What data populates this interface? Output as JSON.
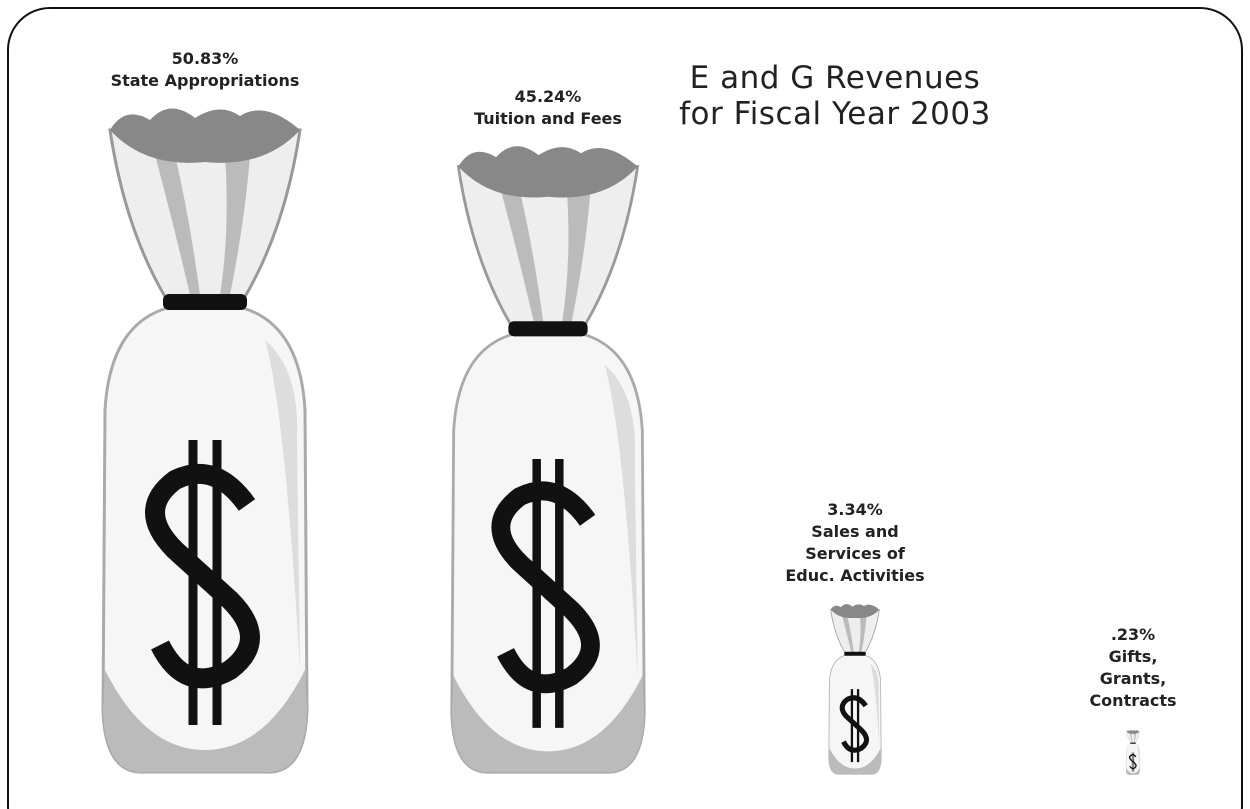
{
  "chart_data": {
    "type": "pictograph",
    "title": "E and G Revenues\nfor Fiscal Year 2003",
    "categories": [
      "State Appropriations",
      "Tuition and Fees",
      "Sales and\nServices of\nEduc. Activities",
      "Gifts,\nGrants,\nContracts"
    ],
    "values": [
      50.83,
      45.24,
      3.34,
      0.23
    ],
    "value_labels": [
      "50.83%",
      "45.24%",
      "3.34%",
      ".23%"
    ]
  }
}
